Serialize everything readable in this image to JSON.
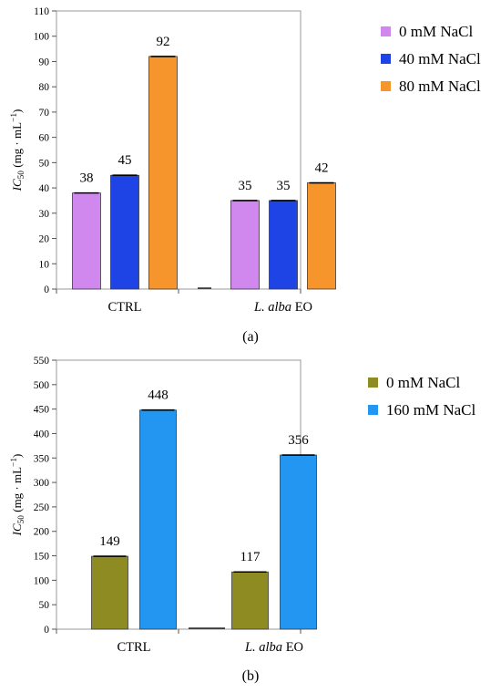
{
  "chart_data": [
    {
      "type": "bar",
      "panel_label": "(a)",
      "ylabel": {
        "sym": "IC",
        "sub": "50",
        "units": "(mg · mL",
        "sup": "−1",
        "close": ")"
      },
      "ylim": [
        0,
        110
      ],
      "yticks": [
        0,
        10,
        20,
        30,
        40,
        50,
        60,
        70,
        80,
        90,
        100,
        110
      ],
      "grid": false,
      "legend_position": "right",
      "categories": [
        {
          "normal_pre": "",
          "italic": "",
          "normal_post": "CTRL"
        },
        {
          "normal_pre": "",
          "italic": "L. alba",
          "normal_post": " EO"
        }
      ],
      "series": [
        {
          "name": "0 mM NaCl",
          "color": "#d088ee",
          "values": [
            38,
            35
          ]
        },
        {
          "name": "40 mM NaCl",
          "color": "#1f44e6",
          "values": [
            45,
            35
          ]
        },
        {
          "name": "80 mM NaCl",
          "color": "#f6952c",
          "values": [
            92,
            42
          ]
        }
      ]
    },
    {
      "type": "bar",
      "panel_label": "(b)",
      "ylabel": {
        "sym": "IC",
        "sub": "50",
        "units": "(mg · mL",
        "sup": "−1",
        "close": ")"
      },
      "ylim": [
        0,
        550
      ],
      "yticks": [
        0,
        50,
        100,
        150,
        200,
        250,
        300,
        350,
        400,
        450,
        500,
        550
      ],
      "grid": false,
      "legend_position": "right",
      "categories": [
        {
          "normal_pre": "",
          "italic": "",
          "normal_post": "CTRL"
        },
        {
          "normal_pre": "",
          "italic": "L. alba",
          "normal_post": " EO"
        }
      ],
      "series": [
        {
          "name": "0 mM NaCl",
          "color": "#8e8b22",
          "values": [
            149,
            117
          ]
        },
        {
          "name": "160 mM NaCl",
          "color": "#2296f0",
          "values": [
            448,
            356
          ]
        }
      ]
    }
  ]
}
